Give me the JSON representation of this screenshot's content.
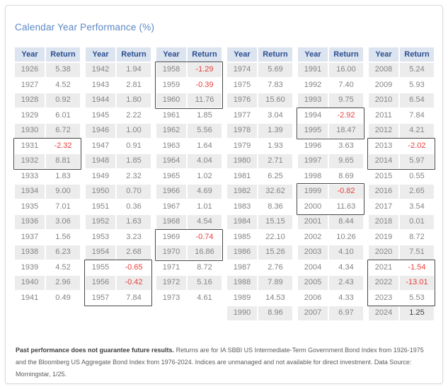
{
  "chart_data": {
    "type": "table",
    "title": "Calendar Year Performance (%)",
    "year_header": "Year",
    "return_header": "Return",
    "groups": [
      {
        "rows": [
          {
            "year": "1926",
            "value": "5.38"
          },
          {
            "year": "1927",
            "value": "4.52"
          },
          {
            "year": "1928",
            "value": "0.92"
          },
          {
            "year": "1929",
            "value": "6.01"
          },
          {
            "year": "1930",
            "value": "6.72"
          },
          {
            "year": "1931",
            "value": "-2.32"
          },
          {
            "year": "1932",
            "value": "8.81"
          },
          {
            "year": "1933",
            "value": "1.83"
          },
          {
            "year": "1934",
            "value": "9.00"
          },
          {
            "year": "1935",
            "value": "7.01"
          },
          {
            "year": "1936",
            "value": "3.06"
          },
          {
            "year": "1937",
            "value": "1.56"
          },
          {
            "year": "1938",
            "value": "6.23"
          },
          {
            "year": "1939",
            "value": "4.52"
          },
          {
            "year": "1940",
            "value": "2.96"
          },
          {
            "year": "1941",
            "value": "0.49"
          }
        ],
        "boxes": [
          [
            "1931",
            "1932"
          ]
        ]
      },
      {
        "rows": [
          {
            "year": "1942",
            "value": "1.94"
          },
          {
            "year": "1943",
            "value": "2.81"
          },
          {
            "year": "1944",
            "value": "1.80"
          },
          {
            "year": "1945",
            "value": "2.22"
          },
          {
            "year": "1946",
            "value": "1.00"
          },
          {
            "year": "1947",
            "value": "0.91"
          },
          {
            "year": "1948",
            "value": "1.85"
          },
          {
            "year": "1949",
            "value": "2.32"
          },
          {
            "year": "1950",
            "value": "0.70"
          },
          {
            "year": "1951",
            "value": "0.36"
          },
          {
            "year": "1952",
            "value": "1.63"
          },
          {
            "year": "1953",
            "value": "3.23"
          },
          {
            "year": "1954",
            "value": "2.68"
          },
          {
            "year": "1955",
            "value": "-0.65"
          },
          {
            "year": "1956",
            "value": "-0.42"
          },
          {
            "year": "1957",
            "value": "7.84"
          }
        ],
        "boxes": [
          [
            "1955",
            "1957"
          ]
        ]
      },
      {
        "rows": [
          {
            "year": "1958",
            "value": "-1.29"
          },
          {
            "year": "1959",
            "value": "-0.39"
          },
          {
            "year": "1960",
            "value": "11.76"
          },
          {
            "year": "1961",
            "value": "1.85"
          },
          {
            "year": "1962",
            "value": "5.56"
          },
          {
            "year": "1963",
            "value": "1.64"
          },
          {
            "year": "1964",
            "value": "4.04"
          },
          {
            "year": "1965",
            "value": "1.02"
          },
          {
            "year": "1966",
            "value": "4.69"
          },
          {
            "year": "1967",
            "value": "1.01"
          },
          {
            "year": "1968",
            "value": "4.54"
          },
          {
            "year": "1969",
            "value": "-0.74"
          },
          {
            "year": "1970",
            "value": "16.86"
          },
          {
            "year": "1971",
            "value": "8.72"
          },
          {
            "year": "1972",
            "value": "5.16"
          },
          {
            "year": "1973",
            "value": "4.61"
          }
        ],
        "boxes": [
          [
            "1958",
            "1960"
          ],
          [
            "1969",
            "1970"
          ]
        ]
      },
      {
        "rows": [
          {
            "year": "1974",
            "value": "5.69"
          },
          {
            "year": "1975",
            "value": "7.83"
          },
          {
            "year": "1976",
            "value": "15.60"
          },
          {
            "year": "1977",
            "value": "3.04"
          },
          {
            "year": "1978",
            "value": "1.39"
          },
          {
            "year": "1979",
            "value": "1.93"
          },
          {
            "year": "1980",
            "value": "2.71"
          },
          {
            "year": "1981",
            "value": "6.25"
          },
          {
            "year": "1982",
            "value": "32.62"
          },
          {
            "year": "1983",
            "value": "8.36"
          },
          {
            "year": "1984",
            "value": "15.15"
          },
          {
            "year": "1985",
            "value": "22.10"
          },
          {
            "year": "1986",
            "value": "15.26"
          },
          {
            "year": "1987",
            "value": "2.76"
          },
          {
            "year": "1988",
            "value": "7.89"
          },
          {
            "year": "1989",
            "value": "14.53"
          },
          {
            "year": "1990",
            "value": "8.96"
          }
        ],
        "boxes": []
      },
      {
        "rows": [
          {
            "year": "1991",
            "value": "16.00"
          },
          {
            "year": "1992",
            "value": "7.40"
          },
          {
            "year": "1993",
            "value": "9.75"
          },
          {
            "year": "1994",
            "value": "-2.92"
          },
          {
            "year": "1995",
            "value": "18.47"
          },
          {
            "year": "1996",
            "value": "3.63"
          },
          {
            "year": "1997",
            "value": "9.65"
          },
          {
            "year": "1998",
            "value": "8.69"
          },
          {
            "year": "1999",
            "value": "-0.82"
          },
          {
            "year": "2000",
            "value": "11.63"
          },
          {
            "year": "2001",
            "value": "8.44"
          },
          {
            "year": "2002",
            "value": "10.26"
          },
          {
            "year": "2003",
            "value": "4.10"
          },
          {
            "year": "2004",
            "value": "4.34"
          },
          {
            "year": "2005",
            "value": "2.43"
          },
          {
            "year": "2006",
            "value": "4.33"
          },
          {
            "year": "2007",
            "value": "6.97"
          }
        ],
        "boxes": [
          [
            "1994",
            "1995"
          ],
          [
            "1999",
            "2000"
          ]
        ]
      },
      {
        "rows": [
          {
            "year": "2008",
            "value": "5.24"
          },
          {
            "year": "2009",
            "value": "5.93"
          },
          {
            "year": "2010",
            "value": "6.54"
          },
          {
            "year": "2011",
            "value": "7.84"
          },
          {
            "year": "2012",
            "value": "4.21"
          },
          {
            "year": "2013",
            "value": "-2.02"
          },
          {
            "year": "2014",
            "value": "5.97"
          },
          {
            "year": "2015",
            "value": "0.55"
          },
          {
            "year": "2016",
            "value": "2.65"
          },
          {
            "year": "2017",
            "value": "3.54"
          },
          {
            "year": "2018",
            "value": "0.01"
          },
          {
            "year": "2019",
            "value": "8.72"
          },
          {
            "year": "2020",
            "value": "7.51"
          },
          {
            "year": "2021",
            "value": "-1.54"
          },
          {
            "year": "2022",
            "value": "-13.01"
          },
          {
            "year": "2023",
            "value": "5.53"
          },
          {
            "year": "2024",
            "value": "1.25",
            "emph": true
          }
        ],
        "boxes": [
          [
            "2013",
            "2014"
          ],
          [
            "2021",
            "2023"
          ]
        ]
      }
    ]
  },
  "footnote": {
    "bold": "Past performance does not guarantee future results.",
    "rest": " Returns are for IA SBBI US Intermediate-Term Government Bond Index from 1926-1975 and the Bloomberg US Aggregate Bond Index from 1976-2024. Indices are unmanaged and not available for direct investment. Data Source: Morningstar, 1/25."
  },
  "colors": {
    "title_blue": "#5b88c6",
    "header_bg": "#dce4f0",
    "header_text": "#2b4e8f",
    "row_stripe": "#ececec",
    "value_text": "#848484",
    "negative_red": "#e8403c",
    "outline_dark": "#474747"
  }
}
